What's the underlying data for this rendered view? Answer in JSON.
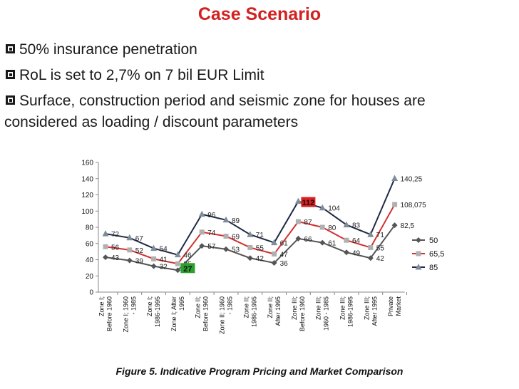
{
  "title": "Case Scenario",
  "bullets": [
    "50% insurance penetration",
    "RoL  is set to 2,7% on 7 bil EUR Limit",
    "Surface, construction period and seismic zone for houses are",
    "considered as loading / discount parameters"
  ],
  "caption": "Figure 5.  Indicative Program Pricing and Market Comparison",
  "chart_data": {
    "type": "line",
    "title": "",
    "xlabel": "",
    "ylabel": "",
    "ylim": [
      0,
      160
    ],
    "yticks": [
      0,
      20,
      40,
      60,
      80,
      100,
      120,
      140,
      160
    ],
    "grid": false,
    "legend": "right",
    "categories": [
      "Zone I; Before 1960",
      "Zone I; 1960 - 1985",
      "Zone I; 1986-1995",
      "Zone I; After 1995",
      "Zone II; Before 1960",
      "Zone II; 1960 - 1985",
      "Zone II; 1986-1995",
      "Zone II; After 1995",
      "Zone III; Before 1960",
      "Zone III; 1960 - 1985",
      "Zone III; 1986-1995",
      "Zone III; After 1995",
      "Private Market"
    ],
    "series": [
      {
        "name": "50",
        "color": "#555555",
        "marker": "diamond",
        "values": [
          43,
          39,
          32,
          27,
          57,
          53,
          42,
          36,
          66,
          61,
          49,
          42,
          82.5
        ],
        "labels": [
          "43",
          "39",
          "32",
          "",
          "57",
          "53",
          "42",
          "36",
          "66",
          "61",
          "49",
          "42",
          "82,5"
        ]
      },
      {
        "name": "65,5",
        "color": "#d32f2f",
        "marker": "square",
        "values": [
          56,
          52,
          41,
          35,
          74,
          69,
          55,
          47,
          87,
          80,
          64,
          55,
          108.075
        ],
        "labels": [
          "56",
          "52",
          "41",
          "35",
          "74",
          "69",
          "55",
          "47",
          "87",
          "80",
          "64",
          "55",
          "108,075"
        ]
      },
      {
        "name": "85",
        "color": "#1f2a44",
        "marker": "triangle",
        "values": [
          72,
          67,
          54,
          46,
          96,
          89,
          71,
          61,
          112,
          104,
          83,
          71,
          140.25
        ],
        "labels": [
          "72",
          "67",
          "54",
          "46",
          "96",
          "89",
          "71",
          "61",
          "",
          "104",
          "83",
          "71",
          "140,25"
        ]
      }
    ],
    "highlights": [
      {
        "text": "112",
        "index": 8,
        "value": 112,
        "color": "#dd1f1f"
      },
      {
        "text": "27",
        "index": 3,
        "value": 27,
        "color": "#2ca02c"
      }
    ]
  }
}
